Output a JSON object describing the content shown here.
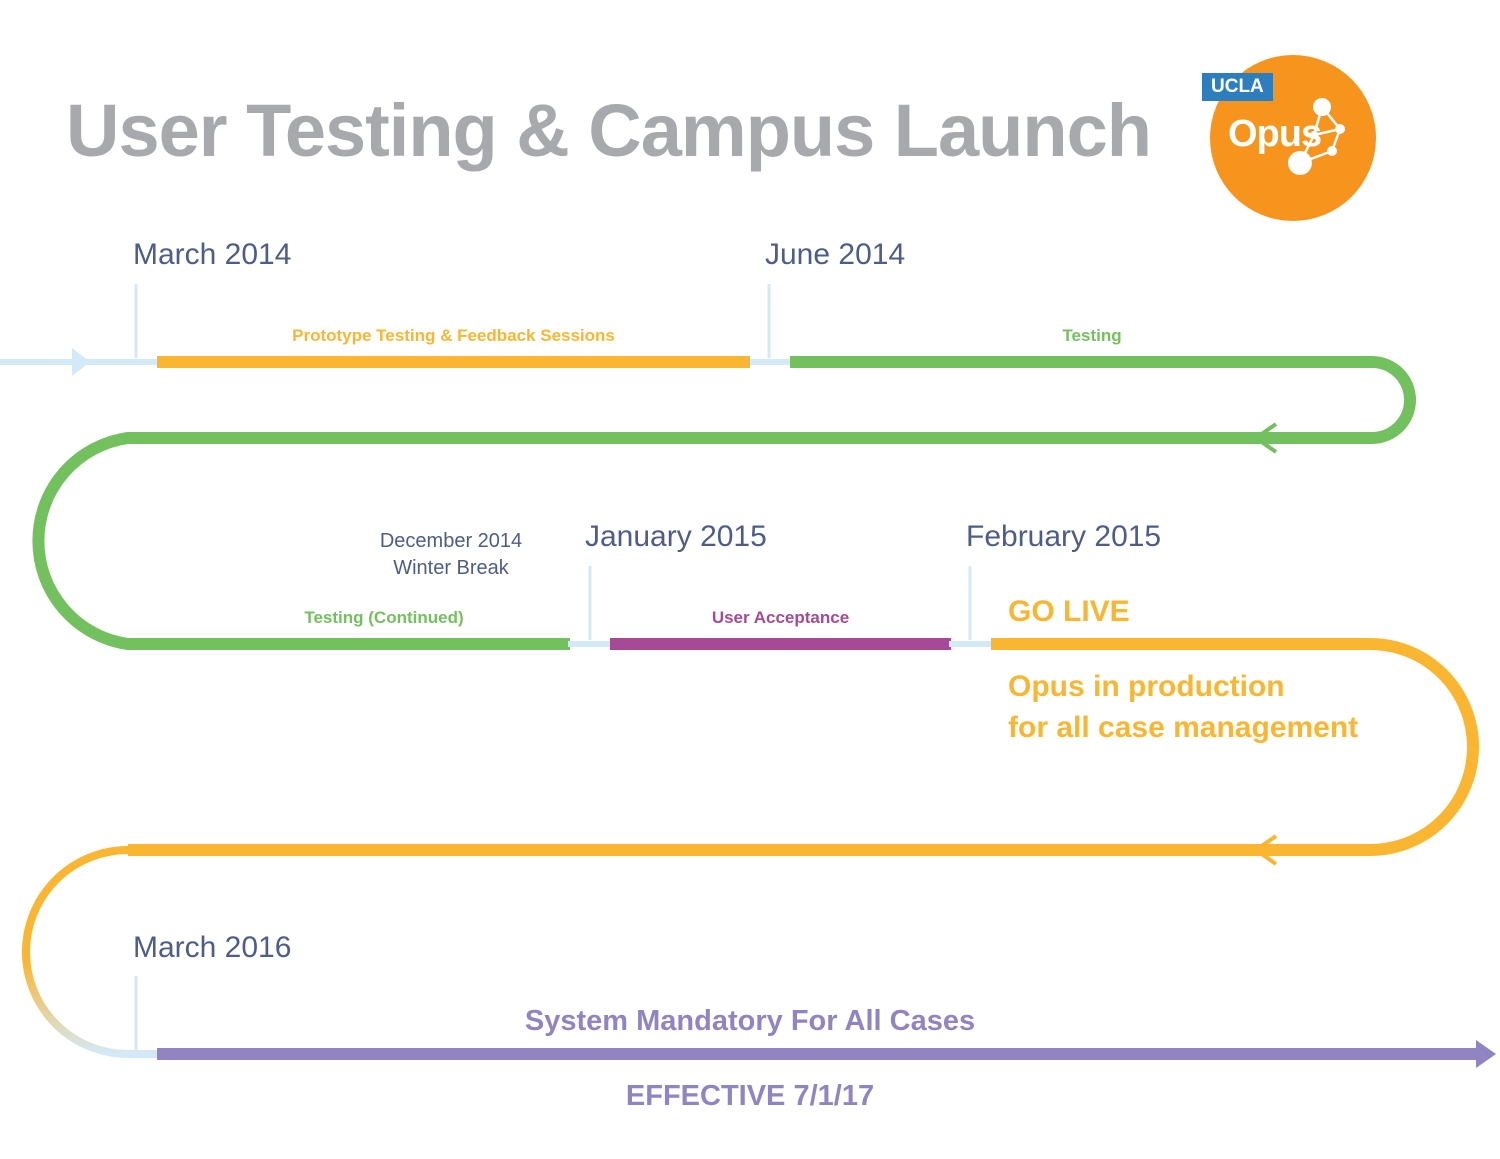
{
  "title": "User Testing & Campus Launch",
  "logo": {
    "badge": "UCLA",
    "name": "Opus"
  },
  "dates": {
    "march_2014": "March 2014",
    "june_2014": "June 2014",
    "january_2015": "January 2015",
    "february_2015": "February 2015",
    "march_2016": "March 2016",
    "december_2014": [
      "December 2014",
      "Winter Break"
    ]
  },
  "segments": {
    "prototype": "Prototype Testing & Feedback Sessions",
    "testing": "Testing",
    "testing_continued": "Testing (Continued)",
    "user_acceptance": "User Acceptance"
  },
  "go_live": {
    "heading": "GO LIVE",
    "lines": [
      "Opus in production",
      "for all case management"
    ]
  },
  "mandatory": "System Mandatory For All Cases",
  "effective": "EFFECTIVE 7/1/17",
  "colors": {
    "title": "#a7a9ac",
    "date_text": "#4d5c8a",
    "path_light_blue": "#d4e9f7",
    "prototype": "#fbb631",
    "testing": "#73c15e",
    "user_acceptance": "#a64a97",
    "go_live": "#fbb631",
    "mandatory": "#9184c2",
    "logo_orange": "#f7941e",
    "ucla_blue": "#2d7ebf"
  }
}
